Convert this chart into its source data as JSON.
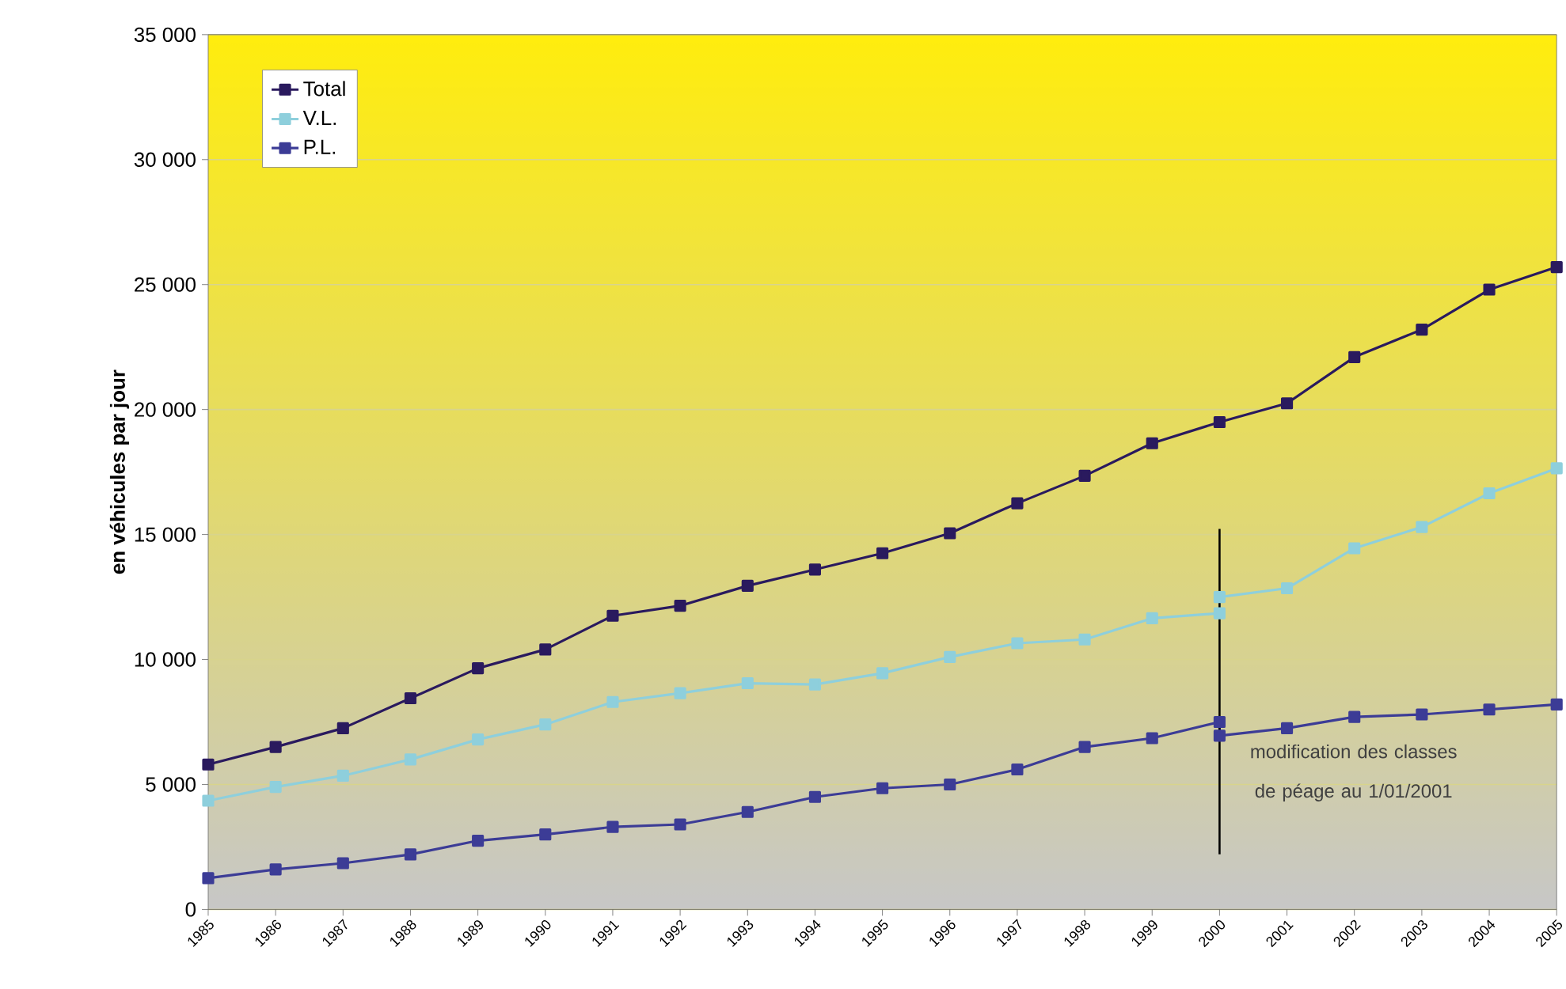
{
  "chart_data": {
    "type": "line",
    "ylabel": "en véhicules par jour",
    "xlim": [
      1985,
      2005
    ],
    "xticks": [
      1985,
      1986,
      1987,
      1988,
      1989,
      1990,
      1991,
      1992,
      1993,
      1994,
      1995,
      1996,
      1997,
      1998,
      1999,
      2000,
      2001,
      2002,
      2003,
      2004,
      2005
    ],
    "ylim": [
      0,
      35000
    ],
    "yticks": [
      {
        "value": 0,
        "label": "0"
      },
      {
        "value": 5000,
        "label": "5 000"
      },
      {
        "value": 10000,
        "label": "10 000"
      },
      {
        "value": 15000,
        "label": "15 000"
      },
      {
        "value": 20000,
        "label": "20 000"
      },
      {
        "value": 25000,
        "label": "25 000"
      },
      {
        "value": 30000,
        "label": "30 000"
      },
      {
        "value": 35000,
        "label": "35 000"
      }
    ],
    "grid": "y",
    "legend": "top left",
    "marker": "square",
    "line_style": "solid",
    "series": [
      {
        "name": "Total",
        "color": "#2a1a5e",
        "x": [
          1985,
          1986,
          1987,
          1988,
          1989,
          1990,
          1991,
          1992,
          1993,
          1994,
          1995,
          1996,
          1997,
          1998,
          1999,
          2000,
          2001,
          2002,
          2003,
          2004,
          2005
        ],
        "values": [
          5800,
          6500,
          7250,
          8450,
          9650,
          10400,
          11750,
          12150,
          12950,
          13600,
          14250,
          15050,
          16250,
          17350,
          18650,
          19500,
          20250,
          22100,
          23200,
          24800,
          25700
        ]
      },
      {
        "name": "V.L.",
        "color": "#8ecfdc",
        "x": [
          1985,
          1986,
          1987,
          1988,
          1989,
          1990,
          1991,
          1992,
          1993,
          1994,
          1995,
          1996,
          1997,
          1998,
          1999,
          2000,
          2000,
          2001,
          2002,
          2003,
          2004,
          2005
        ],
        "values": [
          4350,
          4900,
          5350,
          6000,
          6800,
          7400,
          8300,
          8650,
          9050,
          9000,
          9450,
          10100,
          10650,
          10800,
          11650,
          11850,
          12500,
          12850,
          14450,
          15300,
          16650,
          17650
        ]
      },
      {
        "name": "P.L.",
        "color": "#3c3c96",
        "x": [
          1985,
          1986,
          1987,
          1988,
          1989,
          1990,
          1991,
          1992,
          1993,
          1994,
          1995,
          1996,
          1997,
          1998,
          1999,
          2000,
          2000,
          2001,
          2002,
          2003,
          2004,
          2005
        ],
        "values": [
          1250,
          1600,
          1850,
          2200,
          2750,
          3000,
          3300,
          3400,
          3900,
          4500,
          4850,
          5000,
          5600,
          6500,
          6850,
          7500,
          6950,
          7250,
          7700,
          7800,
          8000,
          8200
        ]
      }
    ],
    "ref_lines": [
      {
        "axis": "x",
        "value": 2000,
        "label": "modification des classes de péage au 1/01/2001",
        "color": "#000000"
      }
    ]
  }
}
